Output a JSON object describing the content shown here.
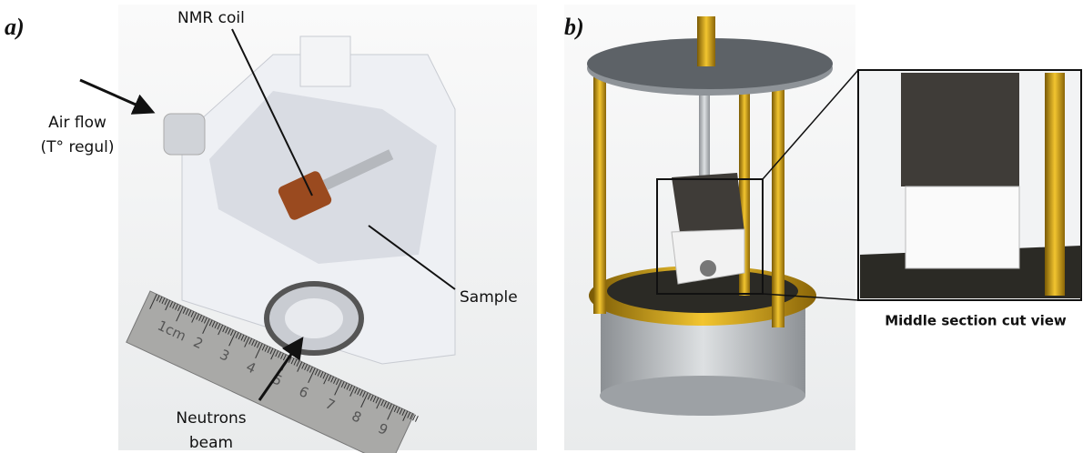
{
  "panels": [
    {
      "label": "a)",
      "annotations": {
        "coil": "NMR coil",
        "air": "Air flow",
        "air_sub": "(T° regul)",
        "sample": "Sample",
        "neutrons": "Neutrons",
        "neutrons_sub": "beam"
      },
      "ruler": [
        "1cm",
        "2",
        "3",
        "4",
        "5",
        "6",
        "7",
        "8",
        "9"
      ]
    },
    {
      "label": "b)",
      "caption": "Middle section cut view"
    }
  ]
}
